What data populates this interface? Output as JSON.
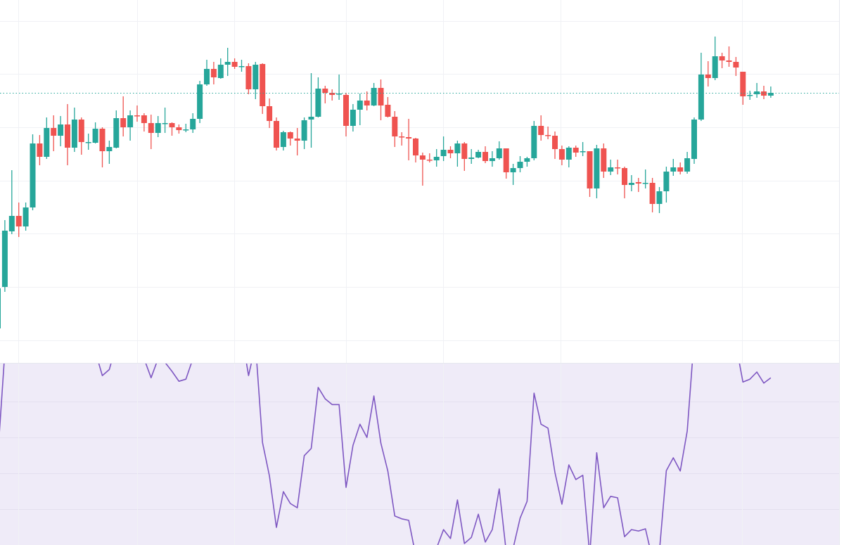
{
  "chart_data": {
    "type": "candlestick",
    "title": "",
    "xlabel": "",
    "ylabel": "",
    "grid": true,
    "legend": "none",
    "last_price": 86.8,
    "ohlc_order": [
      "open",
      "high",
      "low",
      "close"
    ],
    "ohlc": [
      [
        53.3,
        59.5,
        53.3,
        59.0
      ],
      [
        59.2,
        68.7,
        58.5,
        67.2
      ],
      [
        67.1,
        75.8,
        66.7,
        69.3
      ],
      [
        69.3,
        71.2,
        66.3,
        67.8
      ],
      [
        67.8,
        71.2,
        67.2,
        70.5
      ],
      [
        70.5,
        80.9,
        70.1,
        79.6
      ],
      [
        79.6,
        80.8,
        76.5,
        77.7
      ],
      [
        77.7,
        83.3,
        77.4,
        81.8
      ],
      [
        81.8,
        83.6,
        78.5,
        80.7
      ],
      [
        80.7,
        83.5,
        79.2,
        82.3
      ],
      [
        82.3,
        85.2,
        76.5,
        79.0
      ],
      [
        79.0,
        84.7,
        78.4,
        83.0
      ],
      [
        83.0,
        83.3,
        78.0,
        79.8
      ],
      [
        79.8,
        81.0,
        78.7,
        79.8
      ],
      [
        79.7,
        82.6,
        79.6,
        81.7
      ],
      [
        81.7,
        81.9,
        76.2,
        78.5
      ],
      [
        78.5,
        80.0,
        76.7,
        79.1
      ],
      [
        79.0,
        84.3,
        78.9,
        83.2
      ],
      [
        83.2,
        86.3,
        80.6,
        81.9
      ],
      [
        81.9,
        84.3,
        80.0,
        83.6
      ],
      [
        83.6,
        85.0,
        82.7,
        83.5
      ],
      [
        83.6,
        83.9,
        81.3,
        82.5
      ],
      [
        82.5,
        83.7,
        78.8,
        81.1
      ],
      [
        81.1,
        83.5,
        80.5,
        82.5
      ],
      [
        82.4,
        84.7,
        81.1,
        82.5
      ],
      [
        82.5,
        82.6,
        80.7,
        81.9
      ],
      [
        81.9,
        82.3,
        81.0,
        81.5
      ],
      [
        81.5,
        82.4,
        81.2,
        81.6
      ],
      [
        81.6,
        83.9,
        81.1,
        83.1
      ],
      [
        83.1,
        88.5,
        82.5,
        88.0
      ],
      [
        88.0,
        91.5,
        87.8,
        90.2
      ],
      [
        90.2,
        91.2,
        88.0,
        89.0
      ],
      [
        88.9,
        91.7,
        88.8,
        90.8
      ],
      [
        90.8,
        93.2,
        89.2,
        91.2
      ],
      [
        91.2,
        91.7,
        90.2,
        90.5
      ],
      [
        90.5,
        91.5,
        89.8,
        90.6
      ],
      [
        90.6,
        91.0,
        86.6,
        87.3
      ],
      [
        87.3,
        91.2,
        85.9,
        90.8
      ],
      [
        90.9,
        91.0,
        83.8,
        84.9
      ],
      [
        84.9,
        86.0,
        81.8,
        82.8
      ],
      [
        82.8,
        83.3,
        78.6,
        79.0
      ],
      [
        79.1,
        81.4,
        78.6,
        81.2
      ],
      [
        81.2,
        81.3,
        79.3,
        80.3
      ],
      [
        80.3,
        81.8,
        77.9,
        80.0
      ],
      [
        80.0,
        83.3,
        78.8,
        82.9
      ],
      [
        83.0,
        89.6,
        79.0,
        83.4
      ],
      [
        83.4,
        89.0,
        83.3,
        87.4
      ],
      [
        87.4,
        87.8,
        85.3,
        86.8
      ],
      [
        86.8,
        87.3,
        85.7,
        86.5
      ],
      [
        86.6,
        89.4,
        85.8,
        86.7
      ],
      [
        86.5,
        86.8,
        80.6,
        82.1
      ],
      [
        82.1,
        85.2,
        81.3,
        84.4
      ],
      [
        84.4,
        86.7,
        82.2,
        85.7
      ],
      [
        85.7,
        87.0,
        84.3,
        85.0
      ],
      [
        85.0,
        88.2,
        84.9,
        87.5
      ],
      [
        87.5,
        88.7,
        82.9,
        85.0
      ],
      [
        85.1,
        86.2,
        83.3,
        83.4
      ],
      [
        83.4,
        84.2,
        79.1,
        80.6
      ],
      [
        80.6,
        81.2,
        79.3,
        80.5
      ],
      [
        80.5,
        83.1,
        77.2,
        80.3
      ],
      [
        80.3,
        80.4,
        76.9,
        77.9
      ],
      [
        77.9,
        78.3,
        73.6,
        77.3
      ],
      [
        77.3,
        78.2,
        76.9,
        77.2
      ],
      [
        77.2,
        78.8,
        76.3,
        77.7
      ],
      [
        77.8,
        80.6,
        77.1,
        78.7
      ],
      [
        78.7,
        79.2,
        77.5,
        78.2
      ],
      [
        78.2,
        80.0,
        76.3,
        79.6
      ],
      [
        79.6,
        79.8,
        75.7,
        77.4
      ],
      [
        77.4,
        78.8,
        76.7,
        77.6
      ],
      [
        77.6,
        78.7,
        77.5,
        78.4
      ],
      [
        78.4,
        79.2,
        76.8,
        77.1
      ],
      [
        77.1,
        78.5,
        76.3,
        77.5
      ],
      [
        77.5,
        79.9,
        77.3,
        78.9
      ],
      [
        78.9,
        78.9,
        74.6,
        75.5
      ],
      [
        75.5,
        76.7,
        73.7,
        76.1
      ],
      [
        76.1,
        77.8,
        75.5,
        77.0
      ],
      [
        77.0,
        77.7,
        76.3,
        77.5
      ],
      [
        77.5,
        82.8,
        77.2,
        82.1
      ],
      [
        82.1,
        83.6,
        80.0,
        80.8
      ],
      [
        80.8,
        82.0,
        80.2,
        80.7
      ],
      [
        80.7,
        81.3,
        77.4,
        78.8
      ],
      [
        78.8,
        79.3,
        76.5,
        77.3
      ],
      [
        77.3,
        79.2,
        76.2,
        79.0
      ],
      [
        79.0,
        79.3,
        77.7,
        78.3
      ],
      [
        78.4,
        79.8,
        77.8,
        78.5
      ],
      [
        78.5,
        78.5,
        72.0,
        73.2
      ],
      [
        73.2,
        79.4,
        71.8,
        78.9
      ],
      [
        78.9,
        79.6,
        74.7,
        75.6
      ],
      [
        75.6,
        77.3,
        75.1,
        76.2
      ],
      [
        76.2,
        77.3,
        75.2,
        76.1
      ],
      [
        76.1,
        76.3,
        71.8,
        73.7
      ],
      [
        73.7,
        75.1,
        72.8,
        74.0
      ],
      [
        74.1,
        74.7,
        72.7,
        73.9
      ],
      [
        73.9,
        75.9,
        73.2,
        74.0
      ],
      [
        74.0,
        74.7,
        69.8,
        71.0
      ],
      [
        71.0,
        73.4,
        69.7,
        72.8
      ],
      [
        72.8,
        76.3,
        71.2,
        75.6
      ],
      [
        75.6,
        77.4,
        75.0,
        76.2
      ],
      [
        76.2,
        76.9,
        75.2,
        75.6
      ],
      [
        75.6,
        78.4,
        75.3,
        77.5
      ],
      [
        77.4,
        83.3,
        76.7,
        83.0
      ],
      [
        83.0,
        92.5,
        82.8,
        89.4
      ],
      [
        89.4,
        91.3,
        87.7,
        88.9
      ],
      [
        88.9,
        94.8,
        88.6,
        92.0
      ],
      [
        92.0,
        92.5,
        90.3,
        91.4
      ],
      [
        91.4,
        93.4,
        90.5,
        91.2
      ],
      [
        91.2,
        91.9,
        89.2,
        90.4
      ],
      [
        89.8,
        89.8,
        85.1,
        86.3
      ],
      [
        86.4,
        87.1,
        85.8,
        86.5
      ],
      [
        86.6,
        88.2,
        86.1,
        87.0
      ],
      [
        87.0,
        87.8,
        85.9,
        86.4
      ],
      [
        86.4,
        87.7,
        86.1,
        86.8
      ]
    ],
    "lower_pane": {
      "type": "line",
      "visible_range": [
        20,
        70.6
      ],
      "values": [
        45,
        74,
        78,
        75,
        77,
        84,
        80,
        83,
        80,
        81,
        75,
        79,
        73,
        72,
        74,
        67.3,
        69,
        76,
        73,
        75,
        74,
        72,
        66.7,
        72,
        71,
        68.5,
        65.7,
        66.3,
        72,
        82,
        86,
        82,
        84,
        84,
        80,
        79,
        67.3,
        76,
        48.6,
        39.2,
        24.8,
        34.8,
        31.5,
        30.3,
        44.9,
        46.9,
        64,
        60.8,
        59.2,
        59.2,
        36,
        47.8,
        53.7,
        50,
        61.6,
        48.4,
        40.6,
        28,
        27.2,
        26.8,
        17,
        15,
        16,
        19,
        24.2,
        21.7,
        32.5,
        20.3,
        22,
        28.5,
        20.7,
        24.2,
        35.6,
        18,
        19,
        27.4,
        32.1,
        62.4,
        53.7,
        52.6,
        40.2,
        31.3,
        42.3,
        38.2,
        39.4,
        17,
        45.7,
        30.3,
        33.5,
        33.1,
        22.2,
        24.2,
        23.8,
        24.4,
        16,
        18,
        40.7,
        44.3,
        40.6,
        51.8,
        78,
        88,
        84,
        88,
        82,
        80,
        76,
        65.5,
        66.3,
        68.3,
        65.2,
        66.7
      ]
    },
    "colors": {
      "up": "#26a69a",
      "down": "#ef5350",
      "indicator_line": "#7e57c2",
      "indicator_band": "#efebf8",
      "last_price_line": "#26a69a",
      "grid": "#f0f1f5"
    }
  }
}
